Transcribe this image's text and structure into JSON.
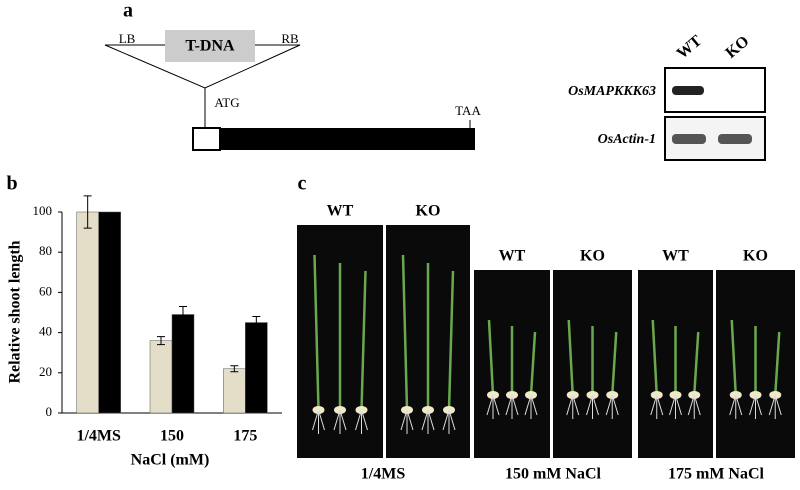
{
  "panel_a": {
    "label": "a",
    "construct": {
      "lb": "LB",
      "tdna": "T-DNA",
      "rb": "RB",
      "start": "ATG",
      "stop": "TAA"
    },
    "gel": {
      "lanes": [
        "WT",
        "KO"
      ],
      "genes": [
        "OsMAPKKK63",
        "OsActin-1"
      ]
    }
  },
  "chart_data": {
    "type": "bar",
    "label": "b",
    "y_label": "Relative shoot length",
    "x_label": "NaCl (mM)",
    "categories": [
      "1/4MS",
      "150",
      "175"
    ],
    "series": [
      {
        "color": "#e4dec8",
        "values": [
          100,
          36,
          22
        ],
        "errors": [
          8,
          2,
          1.5
        ]
      },
      {
        "color": "#000000",
        "values": [
          100,
          49,
          45
        ],
        "errors": [
          null,
          4,
          3
        ]
      }
    ],
    "ylim": [
      0,
      100
    ],
    "yticks": [
      0,
      20,
      40,
      60,
      80,
      100
    ]
  },
  "panel_c": {
    "label": "c",
    "groups": [
      {
        "lanes": [
          "WT",
          "KO"
        ],
        "caption": "1/4MS"
      },
      {
        "lanes": [
          "WT",
          "KO"
        ],
        "caption": "150 mM NaCl"
      },
      {
        "lanes": [
          "WT",
          "KO"
        ],
        "caption": "175 mM NaCl"
      }
    ]
  }
}
